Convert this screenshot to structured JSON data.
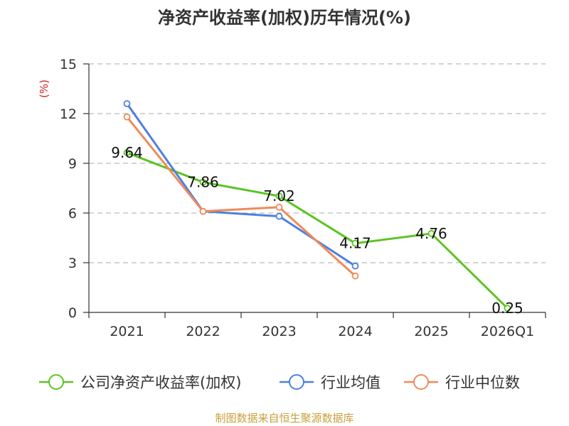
{
  "chart_data": {
    "type": "line",
    "title": "净资产收益率(加权)历年情况(%)",
    "ylabel": "(%)",
    "xlabel": "",
    "ylim": [
      0,
      15
    ],
    "yticks": [
      0,
      3,
      6,
      9,
      12,
      15
    ],
    "grid": true,
    "legend_position": "bottom",
    "categories": [
      "2021",
      "2022",
      "2023",
      "2024",
      "2025",
      "2026Q1"
    ],
    "series": [
      {
        "name": "公司净资产收益率(加权)",
        "color": "#5cc424",
        "values": [
          9.64,
          7.86,
          7.02,
          4.17,
          4.76,
          0.25
        ],
        "labels": [
          "9.64",
          "7.86",
          "7.02",
          "4.17",
          "4.76",
          "0.25"
        ]
      },
      {
        "name": "行业均值",
        "color": "#4d80de",
        "values": [
          12.6,
          6.1,
          5.8,
          2.8,
          null,
          null
        ]
      },
      {
        "name": "行业中位数",
        "color": "#f08a5a",
        "values": [
          11.8,
          6.1,
          6.35,
          2.2,
          null,
          null
        ]
      }
    ]
  },
  "source": "制图数据来自恒生聚源数据库",
  "colors": {
    "ylabel": "#d42020",
    "source": "#c8a03c",
    "grid": "#bbbbbb",
    "axis": "#333333"
  }
}
